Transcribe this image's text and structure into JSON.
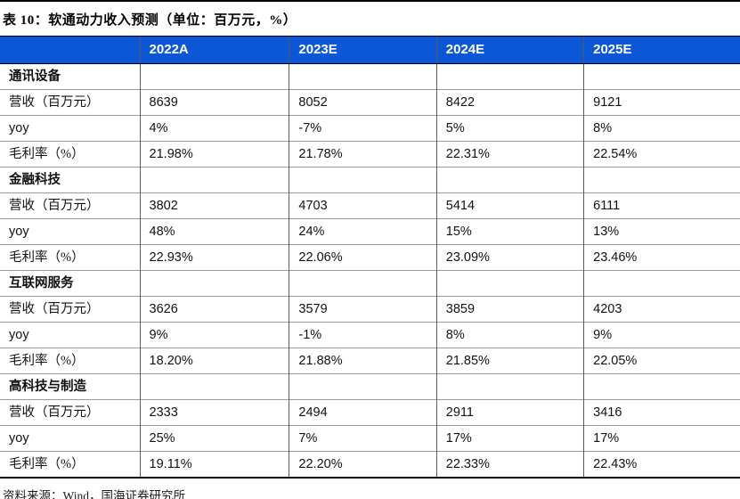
{
  "page": {
    "title": "表 10：软通动力收入预测（单位：百万元，%）",
    "source": "资料来源：Wind，国海证券研究所"
  },
  "colors": {
    "header_bg": "#0B57D6",
    "header_text": "#FFFFFF",
    "heavy_rule": "#000000",
    "grid_vertical": "#595959",
    "grid_horizontal": "#9B9B9B"
  },
  "table": {
    "columns": [
      "",
      "2022A",
      "2023E",
      "2024E",
      "2025E"
    ],
    "sections": [
      {
        "name": "通讯设备",
        "rows": [
          {
            "label": "营收（百万元）",
            "values": [
              "8639",
              "8052",
              "8422",
              "9121"
            ]
          },
          {
            "label": "yoy",
            "values": [
              "4%",
              "-7%",
              "5%",
              "8%"
            ]
          },
          {
            "label": "毛利率（%）",
            "values": [
              "21.98%",
              "21.78%",
              "22.31%",
              "22.54%"
            ]
          }
        ]
      },
      {
        "name": "金融科技",
        "rows": [
          {
            "label": "营收（百万元）",
            "values": [
              "3802",
              "4703",
              "5414",
              "6111"
            ]
          },
          {
            "label": "yoy",
            "values": [
              "48%",
              "24%",
              "15%",
              "13%"
            ]
          },
          {
            "label": "毛利率（%）",
            "values": [
              "22.93%",
              "22.06%",
              "23.09%",
              "23.46%"
            ]
          }
        ]
      },
      {
        "name": "互联网服务",
        "rows": [
          {
            "label": "营收（百万元）",
            "values": [
              "3626",
              "3579",
              "3859",
              "4203"
            ]
          },
          {
            "label": "yoy",
            "values": [
              "9%",
              "-1%",
              "8%",
              "9%"
            ]
          },
          {
            "label": "毛利率（%）",
            "values": [
              "18.20%",
              "21.88%",
              "21.85%",
              "22.05%"
            ]
          }
        ]
      },
      {
        "name": "高科技与制造",
        "rows": [
          {
            "label": "营收（百万元）",
            "values": [
              "2333",
              "2494",
              "2911",
              "3416"
            ]
          },
          {
            "label": "yoy",
            "values": [
              "25%",
              "7%",
              "17%",
              "17%"
            ]
          },
          {
            "label": "毛利率（%）",
            "values": [
              "19.11%",
              "22.20%",
              "22.33%",
              "22.43%"
            ]
          }
        ]
      }
    ]
  }
}
